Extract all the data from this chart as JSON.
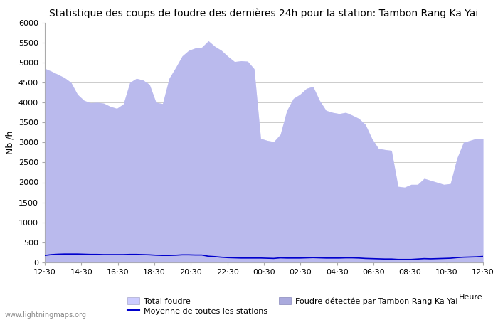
{
  "title": "Statistique des coups de foudre des dernières 24h pour la station: Tambon Rang Ka Yai",
  "ylabel": "Nb /h",
  "xlabel_heure": "Heure",
  "watermark": "www.lightningmaps.org",
  "ylim": [
    0,
    6000
  ],
  "yticks": [
    0,
    500,
    1000,
    1500,
    2000,
    2500,
    3000,
    3500,
    4000,
    4500,
    5000,
    5500,
    6000
  ],
  "xtick_labels": [
    "12:30",
    "14:30",
    "16:30",
    "18:30",
    "20:30",
    "22:30",
    "00:30",
    "02:30",
    "04:30",
    "06:30",
    "08:30",
    "10:30",
    "12:30"
  ],
  "total_foudre_color": "#ccccff",
  "detected_foudre_color": "#aaaadd",
  "mean_line_color": "#0000cc",
  "background_color": "#ffffff",
  "grid_color": "#cccccc",
  "legend_total": "Total foudre",
  "legend_detected": "Foudre détectée par Tambon Rang Ka Yai",
  "legend_mean": "Moyenne de toutes les stations",
  "total_foudre": [
    4850,
    4780,
    4700,
    4620,
    4500,
    4200,
    4050,
    3990,
    4000,
    3980,
    3900,
    3850,
    3960,
    4500,
    4600,
    4560,
    4450,
    4000,
    3970,
    4600,
    4870,
    5160,
    5300,
    5360,
    5380,
    5540,
    5400,
    5300,
    5150,
    5020,
    5040,
    5030,
    4840,
    3100,
    3050,
    3020,
    3200,
    3800,
    4100,
    4200,
    4350,
    4400,
    4050,
    3800,
    3750,
    3720,
    3750,
    3680,
    3600,
    3450,
    3100,
    2850,
    2820,
    2800,
    1900,
    1880,
    1950,
    1950,
    2100,
    2050,
    2000,
    1950,
    1970,
    2600,
    3000,
    3050,
    3100,
    3100
  ],
  "mean_values": [
    175,
    195,
    205,
    210,
    210,
    210,
    205,
    200,
    200,
    195,
    195,
    195,
    195,
    200,
    200,
    195,
    190,
    180,
    175,
    175,
    180,
    190,
    190,
    185,
    185,
    155,
    145,
    130,
    120,
    115,
    110,
    110,
    110,
    110,
    105,
    100,
    115,
    110,
    110,
    110,
    115,
    120,
    115,
    110,
    110,
    110,
    115,
    115,
    110,
    100,
    95,
    90,
    85,
    85,
    75,
    75,
    75,
    85,
    95,
    90,
    95,
    100,
    105,
    120,
    130,
    135,
    140,
    150
  ],
  "n_points": 68
}
